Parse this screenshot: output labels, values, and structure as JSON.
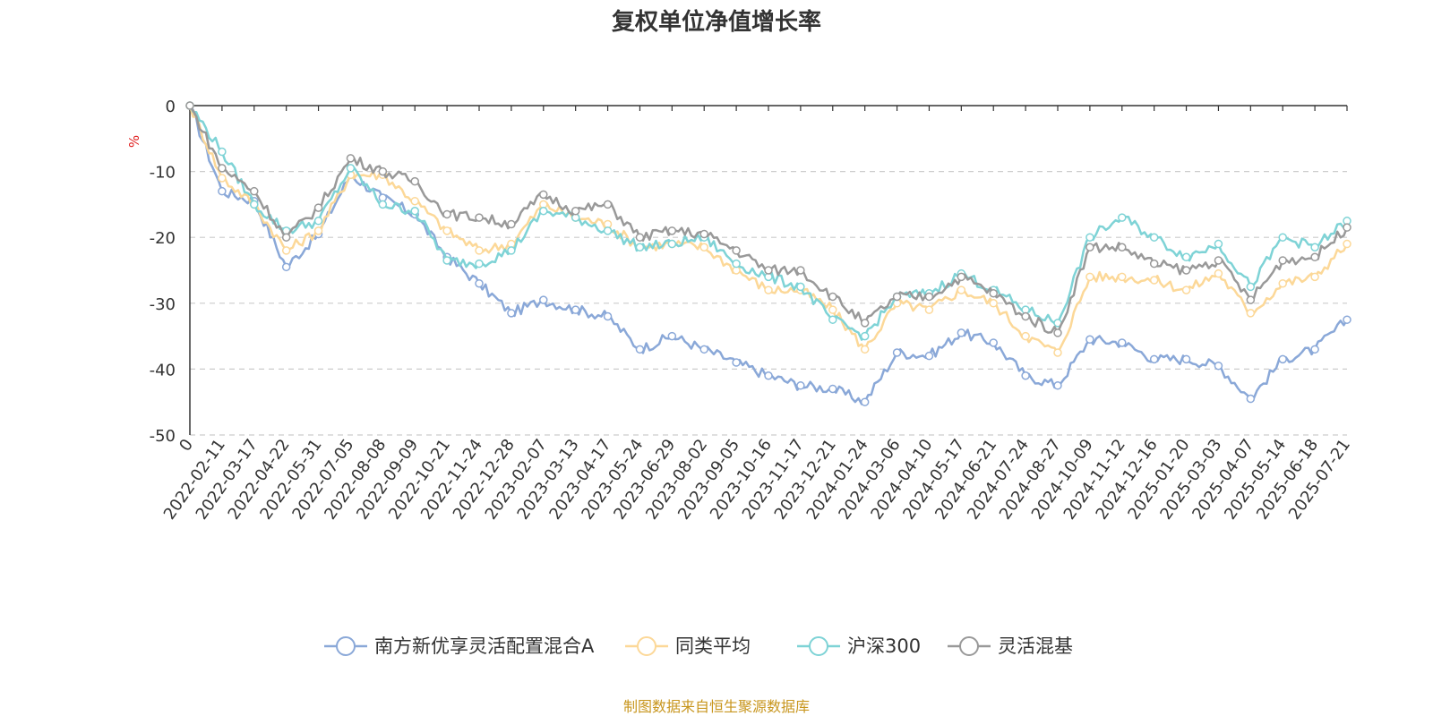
{
  "chart_data": {
    "type": "line",
    "title": "复权单位净值增长率",
    "ylabel": "%",
    "ylim": [
      -50,
      0
    ],
    "yticks": [
      0,
      -10,
      -20,
      -30,
      -40,
      -50
    ],
    "grid": true,
    "legend_position": "bottom",
    "source": "制图数据来自恒生聚源数据库",
    "x_tick_labels": [
      "0",
      "2022-02-11",
      "2022-03-17",
      "2022-04-22",
      "2022-05-31",
      "2022-07-05",
      "2022-08-08",
      "2022-09-09",
      "2022-10-21",
      "2022-11-24",
      "2022-12-28",
      "2023-02-07",
      "2023-03-13",
      "2023-04-17",
      "2023-05-24",
      "2023-06-29",
      "2023-08-02",
      "2023-09-05",
      "2023-10-16",
      "2023-11-17",
      "2023-12-21",
      "2024-01-24",
      "2024-03-06",
      "2024-04-10",
      "2024-05-17",
      "2024-06-21",
      "2024-07-24",
      "2024-08-27",
      "2024-10-09",
      "2024-11-12",
      "2024-12-16",
      "2025-01-20",
      "2025-03-03",
      "2025-04-07",
      "2025-05-14",
      "2025-06-18",
      "2025-07-21"
    ],
    "series": [
      {
        "name": "南方新优享灵活配置混合A",
        "color": "#8aa8d8",
        "values": [
          0,
          -13,
          -14.5,
          -24.5,
          -19.5,
          -10.5,
          -14,
          -16.5,
          -23,
          -27,
          -31.5,
          -29.5,
          -31,
          -32,
          -37,
          -35,
          -37,
          -39,
          -41,
          -42.5,
          -43,
          -45,
          -37.5,
          -38,
          -34.5,
          -36,
          -41,
          -42.5,
          -35.5,
          -36,
          -38.5,
          -38.5,
          -39.5,
          -44.5,
          -38.5,
          -37,
          -32.5
        ]
      },
      {
        "name": "同类平均",
        "color": "#fcd898",
        "values": [
          0,
          -11,
          -15,
          -22,
          -19,
          -10.5,
          -10.5,
          -14.5,
          -19,
          -22,
          -21,
          -15,
          -17,
          -18,
          -21.5,
          -21,
          -21.5,
          -25,
          -28,
          -28,
          -31,
          -37,
          -30,
          -31,
          -28,
          -30,
          -35,
          -37.5,
          -26,
          -26,
          -26.5,
          -28,
          -25.5,
          -31.5,
          -27,
          -26,
          -21
        ]
      },
      {
        "name": "沪深300",
        "color": "#7ed3d6",
        "values": [
          0,
          -7,
          -15,
          -19,
          -17.5,
          -9.5,
          -15,
          -16,
          -23.5,
          -24,
          -22,
          -16,
          -17,
          -19,
          -21.5,
          -21,
          -20,
          -24,
          -26,
          -27.5,
          -32.5,
          -35,
          -29,
          -28.5,
          -25.5,
          -28,
          -31,
          -33,
          -20,
          -17,
          -20,
          -23,
          -21,
          -27.5,
          -20,
          -21.5,
          -17.5
        ]
      },
      {
        "name": "灵活混基",
        "color": "#999999",
        "values": [
          0,
          -9.5,
          -13,
          -20,
          -15.5,
          -8,
          -10,
          -11.5,
          -16.5,
          -17,
          -18,
          -13.5,
          -16,
          -15,
          -20,
          -19,
          -19.5,
          -22,
          -25,
          -25,
          -29,
          -33,
          -29,
          -29,
          -26,
          -28.5,
          -32,
          -34.5,
          -21.5,
          -21.5,
          -24,
          -25,
          -23.5,
          -29.5,
          -23.5,
          -23,
          -18.5
        ]
      }
    ]
  }
}
